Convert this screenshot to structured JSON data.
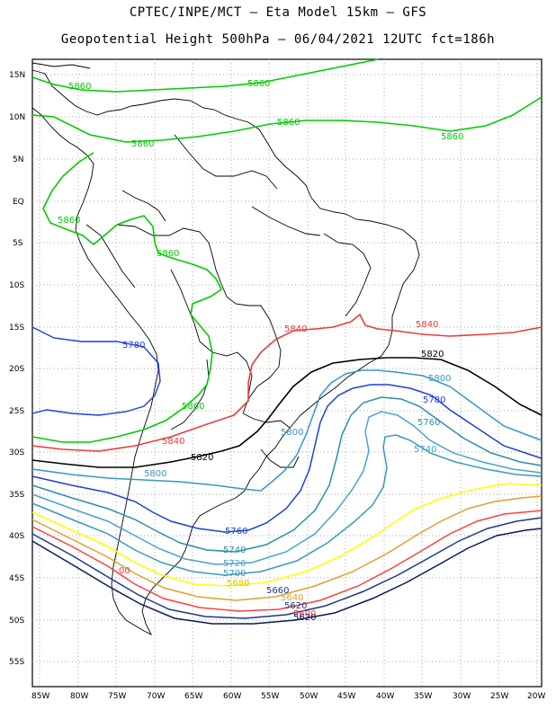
{
  "header": {
    "line1": "CPTEC/INPE/MCT –  Eta Model 15km – GFS",
    "line2": "Geopotential Height 500hPa – 06/04/2021 12UTC fct=186h"
  },
  "axes": {
    "lat_labels": [
      "15N",
      "10N",
      "5N",
      "EQ",
      "5S",
      "10S",
      "15S",
      "20S",
      "25S",
      "30S",
      "35S",
      "40S",
      "45S",
      "50S",
      "55S"
    ],
    "lon_labels": [
      "85W",
      "80W",
      "75W",
      "70W",
      "65W",
      "60W",
      "55W",
      "50W",
      "45W",
      "40W",
      "35W",
      "30W",
      "25W",
      "20W"
    ]
  },
  "colors": {
    "c5860": "#00cc00",
    "c5840": "#e83c3c",
    "c5820": "#000000",
    "c5800": "#3a94c8",
    "c5780": "#1e3fd8",
    "c5760": "#2a8fa8",
    "c5740": "#4aa3d0",
    "c5720": "#3a9ab8",
    "c5700": "#ffff00",
    "c5680": "#e0a030",
    "c5660": "#ff4040",
    "c5640": "#1a3a8a",
    "c5600": "#0a1a5a"
  },
  "contour_labels": [
    {
      "key": "l1",
      "text": "5860"
    },
    {
      "key": "l2",
      "text": "5860"
    },
    {
      "key": "l3",
      "text": "5860"
    },
    {
      "key": "l4",
      "text": "5860"
    },
    {
      "key": "l5",
      "text": "5860"
    },
    {
      "key": "l6",
      "text": "5860"
    },
    {
      "key": "l7",
      "text": "5860"
    },
    {
      "key": "l8",
      "text": "5860"
    },
    {
      "key": "l9",
      "text": "5840"
    },
    {
      "key": "l10",
      "text": "5840"
    },
    {
      "key": "l11",
      "text": "5840"
    },
    {
      "key": "l12",
      "text": "5820"
    },
    {
      "key": "l13",
      "text": "5820"
    },
    {
      "key": "l14",
      "text": "5800"
    },
    {
      "key": "l15",
      "text": "5800"
    },
    {
      "key": "l16",
      "text": "5800"
    },
    {
      "key": "l17",
      "text": "5780"
    },
    {
      "key": "l18",
      "text": "5780"
    },
    {
      "key": "l19",
      "text": "5760"
    },
    {
      "key": "l20",
      "text": "5760"
    },
    {
      "key": "l21",
      "text": "5740"
    },
    {
      "key": "l22",
      "text": "5740"
    },
    {
      "key": "l23",
      "text": "5720"
    },
    {
      "key": "l24",
      "text": "5700"
    },
    {
      "key": "l25",
      "text": "5680"
    },
    {
      "key": "l26",
      "text": "5660"
    },
    {
      "key": "l27",
      "text": "5640"
    },
    {
      "key": "l28",
      "text": "5620"
    },
    {
      "key": "l29",
      "text": "5600"
    },
    {
      "key": "l30",
      "text": "5620"
    },
    {
      "key": "l31",
      "text": "00"
    }
  ]
}
